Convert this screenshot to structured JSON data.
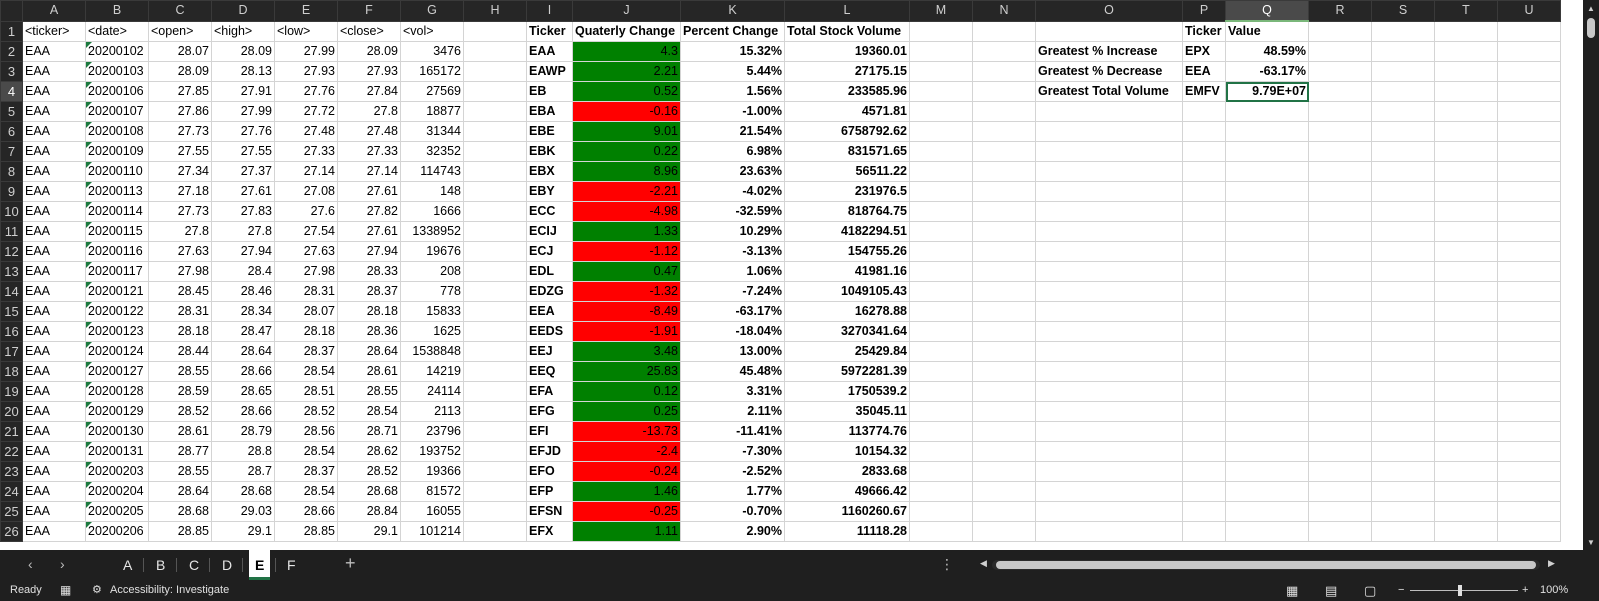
{
  "columns": [
    "A",
    "B",
    "C",
    "D",
    "E",
    "F",
    "G",
    "H",
    "I",
    "J",
    "K",
    "L",
    "M",
    "N",
    "O",
    "P",
    "Q",
    "R",
    "S",
    "T",
    "U"
  ],
  "raw_headers": [
    "<ticker>",
    "<date>",
    "<open>",
    "<high>",
    "<low>",
    "<close>",
    "<vol>"
  ],
  "raw_rows": [
    [
      "EAA",
      "20200102",
      "28.07",
      "28.09",
      "27.99",
      "28.09",
      "3476"
    ],
    [
      "EAA",
      "20200103",
      "28.09",
      "28.13",
      "27.93",
      "27.93",
      "165172"
    ],
    [
      "EAA",
      "20200106",
      "27.85",
      "27.91",
      "27.76",
      "27.84",
      "27569"
    ],
    [
      "EAA",
      "20200107",
      "27.86",
      "27.99",
      "27.72",
      "27.8",
      "18877"
    ],
    [
      "EAA",
      "20200108",
      "27.73",
      "27.76",
      "27.48",
      "27.48",
      "31344"
    ],
    [
      "EAA",
      "20200109",
      "27.55",
      "27.55",
      "27.33",
      "27.33",
      "32352"
    ],
    [
      "EAA",
      "20200110",
      "27.34",
      "27.37",
      "27.14",
      "27.14",
      "114743"
    ],
    [
      "EAA",
      "20200113",
      "27.18",
      "27.61",
      "27.08",
      "27.61",
      "148"
    ],
    [
      "EAA",
      "20200114",
      "27.73",
      "27.83",
      "27.6",
      "27.82",
      "1666"
    ],
    [
      "EAA",
      "20200115",
      "27.8",
      "27.8",
      "27.54",
      "27.61",
      "1338952"
    ],
    [
      "EAA",
      "20200116",
      "27.63",
      "27.94",
      "27.63",
      "27.94",
      "19676"
    ],
    [
      "EAA",
      "20200117",
      "27.98",
      "28.4",
      "27.98",
      "28.33",
      "208"
    ],
    [
      "EAA",
      "20200121",
      "28.45",
      "28.46",
      "28.31",
      "28.37",
      "778"
    ],
    [
      "EAA",
      "20200122",
      "28.31",
      "28.34",
      "28.07",
      "28.18",
      "15833"
    ],
    [
      "EAA",
      "20200123",
      "28.18",
      "28.47",
      "28.18",
      "28.36",
      "1625"
    ],
    [
      "EAA",
      "20200124",
      "28.44",
      "28.64",
      "28.37",
      "28.64",
      "1538848"
    ],
    [
      "EAA",
      "20200127",
      "28.55",
      "28.66",
      "28.54",
      "28.61",
      "14219"
    ],
    [
      "EAA",
      "20200128",
      "28.59",
      "28.65",
      "28.51",
      "28.55",
      "24114"
    ],
    [
      "EAA",
      "20200129",
      "28.52",
      "28.66",
      "28.52",
      "28.54",
      "2113"
    ],
    [
      "EAA",
      "20200130",
      "28.61",
      "28.79",
      "28.56",
      "28.71",
      "23796"
    ],
    [
      "EAA",
      "20200131",
      "28.77",
      "28.8",
      "28.54",
      "28.62",
      "193752"
    ],
    [
      "EAA",
      "20200203",
      "28.55",
      "28.7",
      "28.37",
      "28.52",
      "19366"
    ],
    [
      "EAA",
      "20200204",
      "28.64",
      "28.68",
      "28.54",
      "28.68",
      "81572"
    ],
    [
      "EAA",
      "20200205",
      "28.68",
      "29.03",
      "28.66",
      "28.84",
      "16055"
    ],
    [
      "EAA",
      "20200206",
      "28.85",
      "29.1",
      "28.85",
      "29.1",
      "101214"
    ]
  ],
  "summary_headers": [
    "Ticker",
    "Quaterly Change",
    "Percent Change",
    "Total Stock Volume"
  ],
  "summary_rows": [
    [
      "EAA",
      "4.3",
      "15.32%",
      "19360.01"
    ],
    [
      "EAWP",
      "2.21",
      "5.44%",
      "27175.15"
    ],
    [
      "EB",
      "0.52",
      "1.56%",
      "233585.96"
    ],
    [
      "EBA",
      "-0.16",
      "-1.00%",
      "4571.81"
    ],
    [
      "EBE",
      "9.01",
      "21.54%",
      "6758792.62"
    ],
    [
      "EBK",
      "0.22",
      "6.98%",
      "831571.65"
    ],
    [
      "EBX",
      "8.96",
      "23.63%",
      "56511.22"
    ],
    [
      "EBY",
      "-2.21",
      "-4.02%",
      "231976.5"
    ],
    [
      "ECC",
      "-4.98",
      "-32.59%",
      "818764.75"
    ],
    [
      "ECIJ",
      "1.33",
      "10.29%",
      "4182294.51"
    ],
    [
      "ECJ",
      "-1.12",
      "-3.13%",
      "154755.26"
    ],
    [
      "EDL",
      "0.47",
      "1.06%",
      "41981.16"
    ],
    [
      "EDZG",
      "-1.32",
      "-7.24%",
      "1049105.43"
    ],
    [
      "EEA",
      "-8.49",
      "-63.17%",
      "16278.88"
    ],
    [
      "EEDS",
      "-1.91",
      "-18.04%",
      "3270341.64"
    ],
    [
      "EEJ",
      "3.48",
      "13.00%",
      "25429.84"
    ],
    [
      "EEQ",
      "25.83",
      "45.48%",
      "5972281.39"
    ],
    [
      "EFA",
      "0.12",
      "3.31%",
      "1750539.2"
    ],
    [
      "EFG",
      "0.25",
      "2.11%",
      "35045.11"
    ],
    [
      "EFI",
      "-13.73",
      "-11.41%",
      "113774.76"
    ],
    [
      "EFJD",
      "-2.4",
      "-7.30%",
      "10154.32"
    ],
    [
      "EFO",
      "-0.24",
      "-2.52%",
      "2833.68"
    ],
    [
      "EFP",
      "1.46",
      "1.77%",
      "49666.42"
    ],
    [
      "EFSN",
      "-0.25",
      "-0.70%",
      "1160260.67"
    ],
    [
      "EFX",
      "1.11",
      "2.90%",
      "11118.28"
    ]
  ],
  "greatest": {
    "headers": [
      "Ticker",
      "Value"
    ],
    "rows": [
      [
        "Greatest % Increase",
        "EPX",
        "48.59%"
      ],
      [
        "Greatest % Decrease",
        "EEA",
        "-63.17%"
      ],
      [
        "Greatest Total Volume",
        "EMFV",
        "9.79E+07"
      ]
    ]
  },
  "colors": {
    "positive": "#008000",
    "negative": "#ff0000",
    "accent": "#217346"
  },
  "sheet_tabs": [
    "A",
    "B",
    "C",
    "D",
    "E",
    "F"
  ],
  "active_tab": "E",
  "status": {
    "ready": "Ready",
    "accessibility": "Accessibility: Investigate",
    "zoom": "100%"
  }
}
